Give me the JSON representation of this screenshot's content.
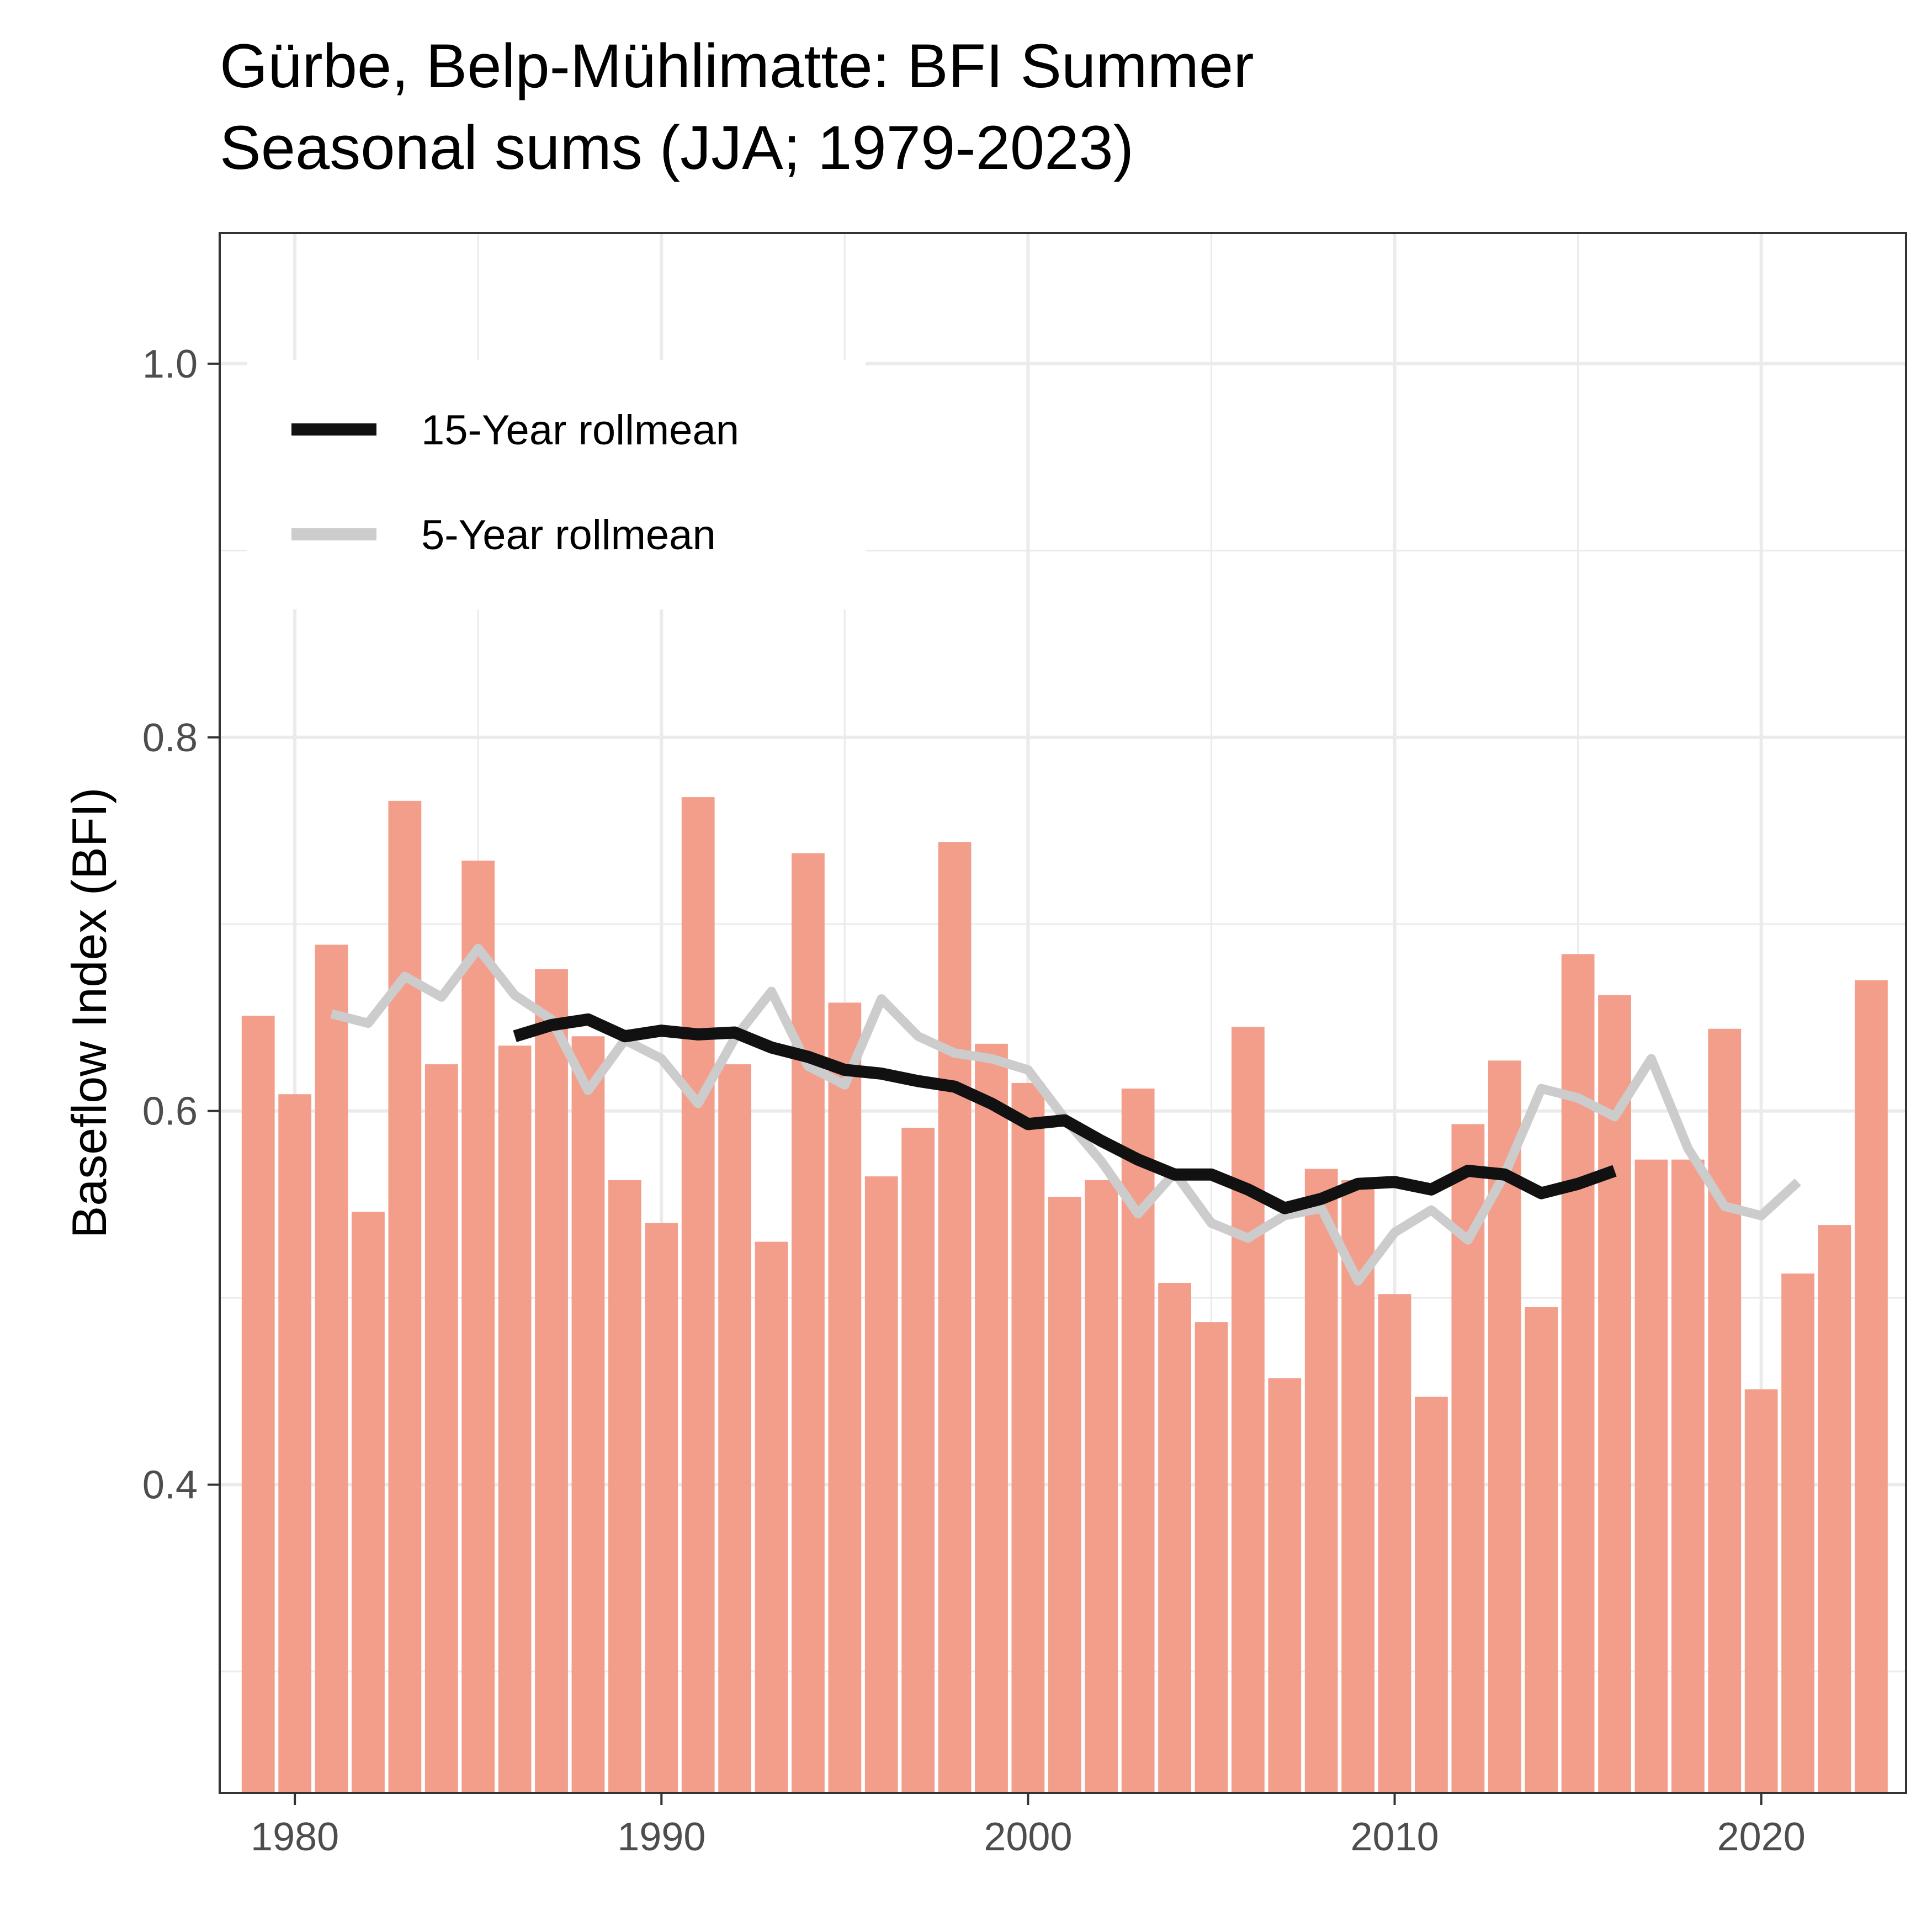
{
  "chart_data": {
    "type": "bar",
    "title": "Gürbe, Belp-Mühlimatte: BFI Summer",
    "subtitle": "Seasonal sums (JJA; 1979-2023)",
    "xlabel": "",
    "ylabel": "Baseflow Index (BFI)",
    "xlim": [
      1977.95,
      2023.95
    ],
    "ylim": [
      0.235,
      1.07
    ],
    "x_ticks": [
      1980,
      1990,
      2000,
      2010,
      2020
    ],
    "y_ticks": [
      0.4,
      0.6,
      0.8,
      1.0
    ],
    "y_tick_labels": [
      "0.4",
      "0.6",
      "0.8",
      "1.0"
    ],
    "grid": true,
    "legend_position": "top-left",
    "bar_color": "#f29e8b",
    "x": [
      1979,
      1980,
      1981,
      1982,
      1983,
      1984,
      1985,
      1986,
      1987,
      1988,
      1989,
      1990,
      1991,
      1992,
      1993,
      1994,
      1995,
      1996,
      1997,
      1998,
      1999,
      2000,
      2001,
      2002,
      2003,
      2004,
      2005,
      2006,
      2007,
      2008,
      2009,
      2010,
      2011,
      2012,
      2013,
      2014,
      2015,
      2016,
      2017,
      2018,
      2019,
      2020,
      2021,
      2022,
      2023
    ],
    "values": [
      0.651,
      0.609,
      0.689,
      0.546,
      0.766,
      0.625,
      0.734,
      0.635,
      0.676,
      0.64,
      0.563,
      0.54,
      0.768,
      0.625,
      0.53,
      0.738,
      0.658,
      0.565,
      0.591,
      0.744,
      0.636,
      0.615,
      0.554,
      0.563,
      0.612,
      0.508,
      0.487,
      0.645,
      0.457,
      0.569,
      0.563,
      0.502,
      0.447,
      0.593,
      0.627,
      0.495,
      0.684,
      0.662,
      0.574,
      0.574,
      0.644,
      0.451,
      0.513,
      0.539,
      0.67
    ],
    "series": [
      {
        "name": "15-Year rollmean",
        "color": "#111111",
        "x": [
          1986,
          1987,
          1988,
          1989,
          1990,
          1991,
          1992,
          1993,
          1994,
          1995,
          1996,
          1997,
          1998,
          1999,
          2000,
          2001,
          2002,
          2003,
          2004,
          2005,
          2006,
          2007,
          2008,
          2009,
          2010,
          2011,
          2012,
          2013,
          2014,
          2015,
          2016
        ],
        "values": [
          0.64,
          0.646,
          0.649,
          0.64,
          0.643,
          0.641,
          0.642,
          0.634,
          0.629,
          0.622,
          0.62,
          0.616,
          0.613,
          0.604,
          0.593,
          0.595,
          0.584,
          0.574,
          0.566,
          0.566,
          0.558,
          0.548,
          0.553,
          0.561,
          0.562,
          0.558,
          0.568,
          0.566,
          0.556,
          0.561,
          0.568
        ]
      },
      {
        "name": "5-Year rollmean",
        "color": "#cccccc",
        "x": [
          1981,
          1982,
          1983,
          1984,
          1985,
          1986,
          1987,
          1988,
          1989,
          1990,
          1991,
          1992,
          1993,
          1994,
          1995,
          1996,
          1997,
          1998,
          1999,
          2000,
          2001,
          2002,
          2003,
          2004,
          2005,
          2006,
          2007,
          2008,
          2009,
          2010,
          2011,
          2012,
          2013,
          2014,
          2015,
          2016,
          2017,
          2018,
          2019,
          2020,
          2021
        ],
        "values": [
          0.652,
          0.647,
          0.672,
          0.661,
          0.687,
          0.662,
          0.649,
          0.611,
          0.638,
          0.628,
          0.604,
          0.639,
          0.664,
          0.624,
          0.614,
          0.66,
          0.64,
          0.631,
          0.628,
          0.622,
          0.596,
          0.573,
          0.545,
          0.567,
          0.54,
          0.532,
          0.544,
          0.548,
          0.509,
          0.535,
          0.547,
          0.531,
          0.566,
          0.612,
          0.607,
          0.597,
          0.628,
          0.58,
          0.549,
          0.544,
          0.562
        ]
      }
    ]
  }
}
